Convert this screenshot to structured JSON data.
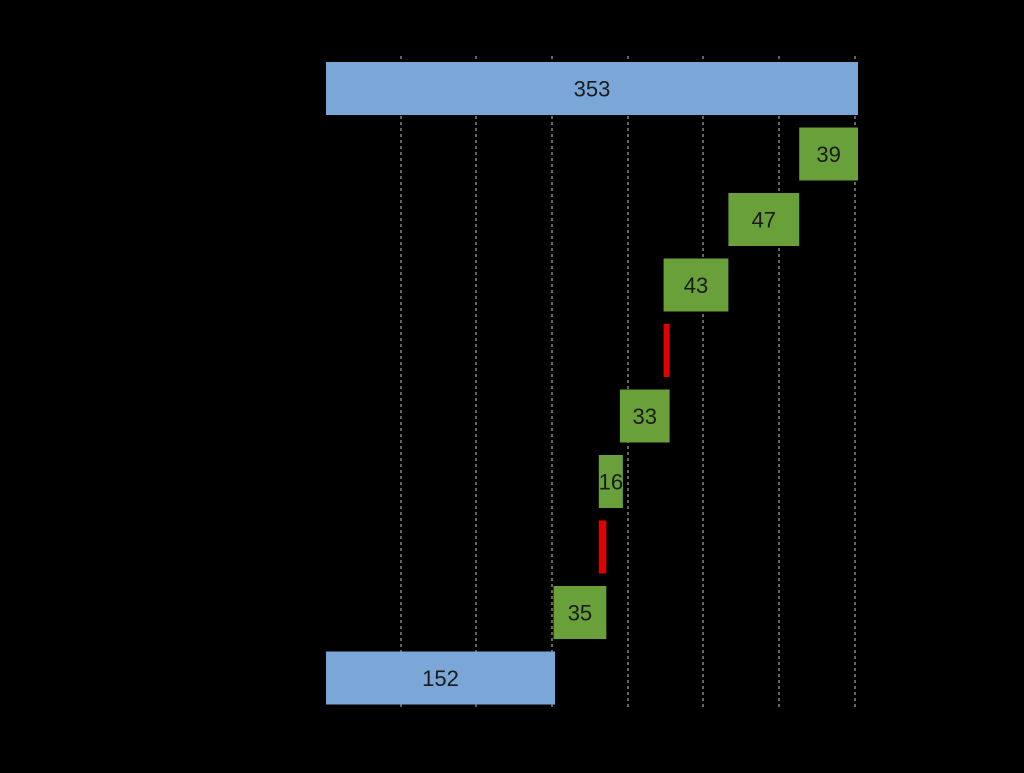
{
  "chart_data": {
    "type": "bar",
    "orientation": "horizontal",
    "style": "waterfall",
    "grid": true,
    "xlim": [
      0,
      353
    ],
    "bars": [
      {
        "value": 353,
        "start": 0,
        "end": 353,
        "kind": "total",
        "label": "353"
      },
      {
        "value": 39,
        "start": 314,
        "end": 353,
        "kind": "increase",
        "label": "39"
      },
      {
        "value": 47,
        "start": 267,
        "end": 314,
        "kind": "increase",
        "label": "47"
      },
      {
        "value": 43,
        "start": 224,
        "end": 267,
        "kind": "increase",
        "label": "43"
      },
      {
        "value": 4,
        "start": 224,
        "end": 228,
        "kind": "decrease",
        "label": ""
      },
      {
        "value": 33,
        "start": 195,
        "end": 228,
        "kind": "increase",
        "label": "33"
      },
      {
        "value": 16,
        "start": 181,
        "end": 197,
        "kind": "increase",
        "label": "16"
      },
      {
        "value": 5,
        "start": 181,
        "end": 186,
        "kind": "decrease",
        "label": ""
      },
      {
        "value": 35,
        "start": 151,
        "end": 186,
        "kind": "increase",
        "label": "35"
      },
      {
        "value": 152,
        "start": 0,
        "end": 152,
        "kind": "total",
        "label": "152"
      }
    ],
    "colors": {
      "total": "#7ba7d8",
      "increase": "#6aa039",
      "decrease": "#e00000",
      "grid": "#c8c8c8",
      "background": "#000000",
      "label": "#1a1a1a"
    }
  }
}
